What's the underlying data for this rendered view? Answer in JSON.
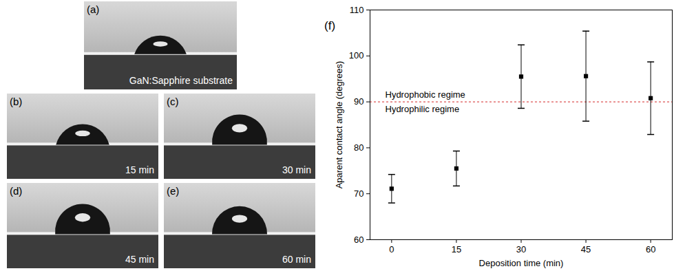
{
  "panels": [
    {
      "label": "(a)",
      "caption": "GaN:Sapphire substrate"
    },
    {
      "label": "(b)",
      "caption": "15 min"
    },
    {
      "label": "(c)",
      "caption": "30 min"
    },
    {
      "label": "(d)",
      "caption": "45 min"
    },
    {
      "label": "(e)",
      "caption": "60 min"
    }
  ],
  "chart_data": {
    "type": "scatter",
    "panel_label": "(f)",
    "x_label": "Deposition time (min)",
    "y_label": "Aparent contact angle (degrees)",
    "x": [
      0,
      15,
      30,
      45,
      60
    ],
    "values": [
      71.1,
      75.5,
      95.5,
      95.6,
      90.8
    ],
    "errors": [
      3.1,
      3.8,
      6.9,
      9.8,
      7.9
    ],
    "color": "#000000",
    "marker": "square",
    "xlim": [
      -5,
      65
    ],
    "ylim": [
      60,
      110
    ],
    "xticks": [
      0,
      15,
      30,
      45,
      60
    ],
    "yticks": [
      60,
      70,
      80,
      90,
      100,
      110
    ],
    "reference_line": {
      "y": 90,
      "color": "#d62728",
      "line_style": "dashed"
    },
    "annotations": [
      {
        "text": "Hydrophobic regime",
        "y": 90,
        "position": "above"
      },
      {
        "text": "Hydrophilic regime",
        "y": 90,
        "position": "below"
      }
    ]
  }
}
